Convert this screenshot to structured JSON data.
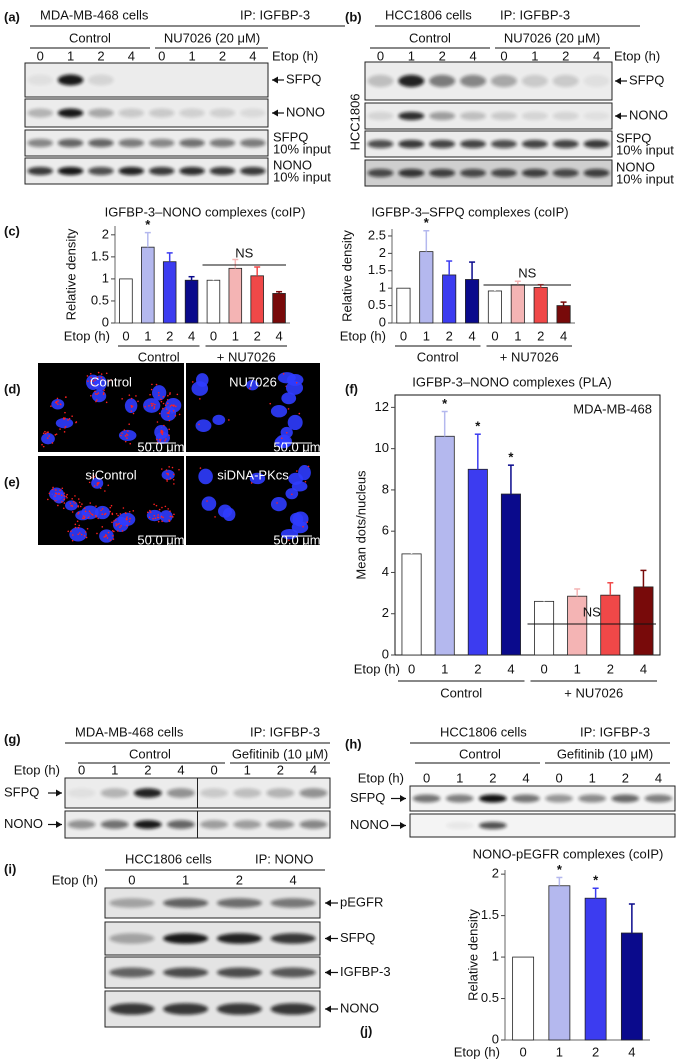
{
  "panels": {
    "a": {
      "label": "(a)",
      "cells": "MDA-MB-468 cells",
      "ip": "IP: IGFBP-3",
      "groups": [
        "Control",
        "NU7026 (20 μM)"
      ],
      "lane_title": "Etop (h)",
      "lanes": [
        "0",
        "1",
        "2",
        "4",
        "0",
        "1",
        "2",
        "4"
      ],
      "rows": [
        {
          "name": "SFPQ"
        },
        {
          "name": "NONO"
        },
        {
          "name": "SFPQ",
          "note": "10% input"
        },
        {
          "name": "NONO",
          "note": "10% input"
        }
      ]
    },
    "b": {
      "label": "(b)",
      "cells": "HCC1806 cells",
      "ip": "IP: IGFBP-3",
      "groups": [
        "Control",
        "NU7026 (20 μM)"
      ],
      "lane_title": "Etop (h)",
      "lanes": [
        "0",
        "1",
        "2",
        "4",
        "0",
        "1",
        "2",
        "4"
      ],
      "side_label": "HCC1806",
      "rows": [
        {
          "name": "SFPQ"
        },
        {
          "name": "NONO"
        },
        {
          "name": "SFPQ",
          "note": "10% input"
        },
        {
          "name": "NONO",
          "note": "10% input"
        }
      ]
    },
    "c": {
      "label": "(c)"
    },
    "d": {
      "label": "(d)",
      "images": [
        {
          "caption": "Control",
          "scale": "50.0 μm"
        },
        {
          "caption": "NU7026",
          "scale": "50.0 μm"
        }
      ]
    },
    "e": {
      "label": "(e)",
      "images": [
        {
          "caption": "siControl",
          "scale": "50.0 μm"
        },
        {
          "caption": "siDNA-PKcs",
          "scale": "50.0 μm"
        }
      ]
    },
    "f": {
      "label": "(f)"
    },
    "g": {
      "label": "(g)",
      "cells": "MDA-MB-468 cells",
      "ip": "IP: IGFBP-3",
      "groups": [
        "Control",
        "Gefitinib (10 μM)"
      ],
      "lane_title": "Etop (h)",
      "lanes": [
        "0",
        "1",
        "2",
        "4",
        "0",
        "1",
        "2",
        "4"
      ],
      "rows": [
        {
          "name": "SFPQ"
        },
        {
          "name": "NONO"
        }
      ]
    },
    "h": {
      "label": "(h)",
      "cells": "HCC1806 cells",
      "ip": "IP: IGFBP-3",
      "groups": [
        "Control",
        "Gefitinib (10 μM)"
      ],
      "lane_title": "Etop (h)",
      "lanes": [
        "0",
        "1",
        "2",
        "4",
        "0",
        "1",
        "2",
        "4"
      ],
      "rows": [
        {
          "name": "SFPQ"
        },
        {
          "name": "NONO"
        }
      ]
    },
    "i": {
      "label": "(i)",
      "cells": "HCC1806 cells",
      "ip": "IP: NONO",
      "lane_title": "Etop (h)",
      "lanes": [
        "0",
        "1",
        "2",
        "4"
      ],
      "rows": [
        {
          "name": "pEGFR"
        },
        {
          "name": "SFPQ"
        },
        {
          "name": "IGFBP-3"
        },
        {
          "name": "NONO"
        }
      ]
    },
    "j": {
      "label": "(j)"
    }
  },
  "chart_data": [
    {
      "type": "bar",
      "title": "IGFBP-3–NONO complexes (coIP)",
      "y_label": "Relative density",
      "x_label": "Etop (h)",
      "categories": [
        "0",
        "1",
        "2",
        "4",
        "0",
        "1",
        "2",
        "4"
      ],
      "values": [
        1,
        1.72,
        1.39,
        0.97,
        0.97,
        1.24,
        1.07,
        0.67
      ],
      "errors": [
        0,
        0.33,
        0.2,
        0.08,
        0.06,
        0.2,
        0.2,
        0.04
      ],
      "colors": [
        "#ffffff",
        "#b4b8ee",
        "#3c3cf0",
        "#0a0a8c",
        "#ffffff",
        "#f4b4b4",
        "#f04848",
        "#780a0a"
      ],
      "bar_labels": [
        null,
        "*",
        null,
        null,
        null,
        null,
        null,
        null
      ],
      "groups": [
        "Control",
        "+ NU7026"
      ],
      "group_annotation": "NS",
      "ylim": [
        0,
        2.2
      ],
      "yticks": [
        0,
        0.5,
        1,
        1.5,
        2
      ]
    },
    {
      "type": "bar",
      "title": "IGFBP-3–SFPQ complexes (coIP)",
      "y_label": "Relative density",
      "x_label": "Etop (h)",
      "categories": [
        "0",
        "1",
        "2",
        "4",
        "0",
        "1",
        "2",
        "4"
      ],
      "values": [
        1,
        2.05,
        1.38,
        1.25,
        0.92,
        1.1,
        1.02,
        0.5
      ],
      "errors": [
        0,
        0.6,
        0.4,
        0.5,
        0.08,
        0.1,
        0.08,
        0.1
      ],
      "colors": [
        "#ffffff",
        "#b4b8ee",
        "#3c3cf0",
        "#0a0a8c",
        "#ffffff",
        "#f4b4b4",
        "#f04848",
        "#780a0a"
      ],
      "bar_labels": [
        null,
        "*",
        null,
        null,
        null,
        null,
        null,
        null
      ],
      "groups": [
        "Control",
        "+ NU7026"
      ],
      "group_annotation": "NS",
      "ylim": [
        0,
        2.7
      ],
      "yticks": [
        0,
        0.5,
        1,
        1.5,
        2,
        2.5
      ]
    },
    {
      "type": "bar",
      "title": "IGFBP-3–NONO complexes (PLA)",
      "inset_label": "MDA-MB-468",
      "y_label": "Mean dots/nucleus",
      "x_label": "Etop (h)",
      "categories": [
        "0",
        "1",
        "2",
        "4",
        "0",
        "1",
        "2",
        "4"
      ],
      "values": [
        4.9,
        10.6,
        9.0,
        7.8,
        2.6,
        2.85,
        2.9,
        3.3
      ],
      "errors": [
        1.0,
        1.2,
        1.7,
        1.4,
        0.4,
        0.35,
        0.6,
        0.8
      ],
      "colors": [
        "#ffffff",
        "#b4b8ee",
        "#3c3cf0",
        "#0a0a8c",
        "#ffffff",
        "#f4b4b4",
        "#f04848",
        "#780a0a"
      ],
      "bar_labels": [
        null,
        "*",
        "*",
        "*",
        null,
        null,
        null,
        null
      ],
      "groups": [
        "Control",
        "+ NU7026"
      ],
      "group_annotation": "NS",
      "ylim": [
        0,
        12.6
      ],
      "yticks": [
        0,
        2,
        4,
        6,
        8,
        10,
        12
      ]
    },
    {
      "type": "bar",
      "title": "NONO-pEGFR complexes (coIP)",
      "y_label": "Relative density",
      "x_label": "Etop (h)",
      "categories": [
        "0",
        "1",
        "2",
        "4"
      ],
      "values": [
        1,
        1.86,
        1.71,
        1.29
      ],
      "errors": [
        0,
        0.1,
        0.12,
        0.35
      ],
      "colors": [
        "#ffffff",
        "#b4b8ee",
        "#3c3cf0",
        "#0a0a8c"
      ],
      "bar_labels": [
        null,
        "*",
        "*",
        null
      ],
      "ylim": [
        0,
        2.05
      ],
      "yticks": [
        0,
        0.5,
        1,
        1.5,
        2
      ]
    }
  ]
}
